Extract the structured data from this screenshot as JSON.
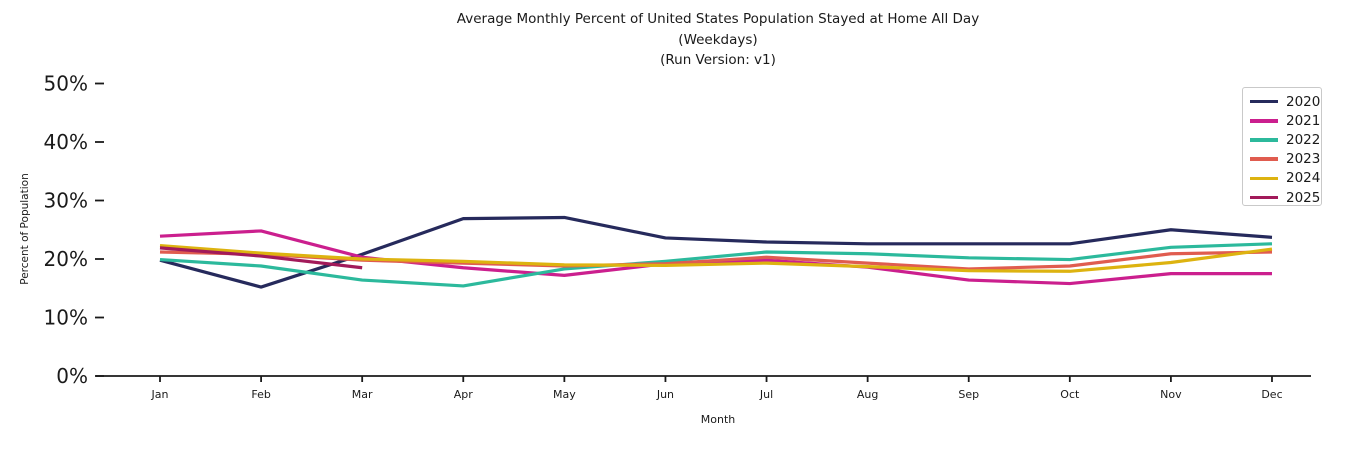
{
  "chart_data": {
    "type": "line",
    "title": "Average Monthly Percent of United States Population Stayed at Home All Day",
    "subtitle_lines": [
      "(Weekdays)",
      "(Run Version: v1)"
    ],
    "xlabel": "Month",
    "ylabel": "Percent of Population",
    "categories": [
      "Jan",
      "Feb",
      "Mar",
      "Apr",
      "May",
      "Jun",
      "Jul",
      "Aug",
      "Sep",
      "Oct",
      "Nov",
      "Dec"
    ],
    "y_tick_values": [
      0,
      10,
      20,
      30,
      40,
      50
    ],
    "y_tick_labels": [
      "0%",
      "10%",
      "20%",
      "30%",
      "40%",
      "50%"
    ],
    "ylim": [
      0,
      50
    ],
    "grid": false,
    "legend_position": "upper right",
    "axis_color": "#1a1a1a",
    "series": [
      {
        "name": "2020",
        "color": "#262a5c",
        "values": [
          19.8,
          15.2,
          20.8,
          26.9,
          27.1,
          23.6,
          22.9,
          22.6,
          22.6,
          22.6,
          25.0,
          23.7
        ]
      },
      {
        "name": "2021",
        "color": "#cb1f8e",
        "values": [
          23.9,
          24.8,
          20.3,
          18.5,
          17.2,
          19.2,
          19.8,
          18.6,
          16.4,
          15.8,
          17.5,
          17.5
        ]
      },
      {
        "name": "2022",
        "color": "#2cb99c",
        "values": [
          19.9,
          18.8,
          16.4,
          15.4,
          18.3,
          19.6,
          21.2,
          20.9,
          20.2,
          19.9,
          22.0,
          22.6
        ]
      },
      {
        "name": "2023",
        "color": "#e05c4f",
        "values": [
          21.2,
          20.8,
          19.8,
          19.3,
          18.8,
          19.2,
          20.3,
          19.3,
          18.3,
          18.8,
          20.9,
          21.2
        ]
      },
      {
        "name": "2024",
        "color": "#ddb310",
        "values": [
          22.3,
          21.0,
          20.0,
          19.6,
          19.0,
          18.9,
          19.3,
          18.7,
          18.0,
          17.9,
          19.4,
          21.7
        ]
      },
      {
        "name": "2025",
        "color": "#a21a5a",
        "values": [
          21.9,
          20.5,
          18.5
        ]
      }
    ]
  }
}
